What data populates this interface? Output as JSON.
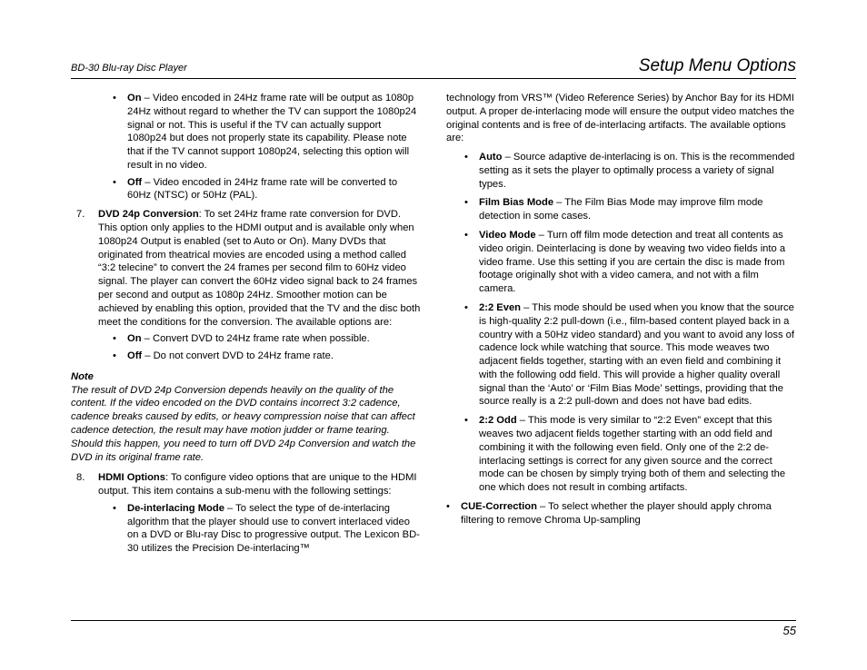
{
  "header": {
    "left": "BD-30 Blu-ray Disc Player",
    "right": "Setup Menu Options"
  },
  "col1": {
    "top_bullets": [
      {
        "label": "On",
        "text": " – Video encoded in 24Hz frame rate will be output as 1080p 24Hz without regard to whether the TV can support the 1080p24 signal or not. This is useful if the TV can actually support 1080p24 but does not properly state its capability. Please note that if the TV cannot support 1080p24, selecting this option will result in no video."
      },
      {
        "label": "Off",
        "text": " – Video encoded in 24Hz frame rate will be converted to 60Hz (NTSC) or 50Hz (PAL)."
      }
    ],
    "item7": {
      "num": "7.",
      "label": "DVD 24p Conversion",
      "text": ": To set 24Hz frame rate conversion for DVD. This option only applies to the HDMI output and is available only when 1080p24 Output is enabled (set to Auto or On). Many DVDs that originated from theatrical movies are encoded using a method called “3:2 telecine” to convert the 24 frames per second film to 60Hz video signal. The player can convert the 60Hz video signal back to 24 frames per second and output as 1080p 24Hz. Smoother motion can be achieved by enabling this option, provided that the TV and the disc both meet the conditions for the conversion. The available options are:",
      "sub": [
        {
          "label": "On",
          "text": " – Convert DVD to 24Hz frame rate when possible."
        },
        {
          "label": "Off",
          "text": " – Do not convert DVD to 24Hz frame rate."
        }
      ]
    },
    "note_head": "Note",
    "note_body": "The result of DVD 24p Conversion depends heavily on the quality of the content. If the video encoded on the DVD contains incorrect 3:2 cadence, cadence breaks caused by edits, or heavy compression noise that can affect cadence detection, the result may have motion judder or frame tearing. Should this happen, you need to turn off DVD 24p Conversion and watch the DVD in its original frame rate.",
    "item8": {
      "num": "8.",
      "label": "HDMI Options",
      "text": ": To configure video options that are unique to the HDMI output. This item contains a sub-menu with the following settings:",
      "sub": [
        {
          "label": "De-interlacing Mode",
          "text": " – To select the type of de-interlacing algorithm that the player should use to convert interlaced video on a DVD or Blu-ray Disc to progressive output. The Lexicon BD-30 utilizes the Precision De-interlacing™"
        }
      ]
    }
  },
  "col2": {
    "lead": "technology from VRS™ (Video Reference Series) by Anchor Bay for its HDMI output. A proper de-interlacing mode will ensure the output video matches the original contents and is free of de-interlacing artifacts. The available options are:",
    "bullets": [
      {
        "label": "Auto",
        "text": " – Source adaptive de-interlacing is on. This is the recommended setting as it sets the player to optimally process a variety of signal types."
      },
      {
        "label": "Film Bias Mode",
        "text": " – The Film Bias Mode may improve film mode detection in some cases."
      },
      {
        "label": "Video Mode",
        "text": " – Turn off film mode detection and treat all contents as video origin. Deinterlacing is done by weaving two video fields into a video frame. Use this setting if you are certain the disc is made from footage originally shot with a video camera, and not with a film camera."
      },
      {
        "label": "2:2 Even",
        "text": " – This mode should be used when you know that the source is high-quality 2:2 pull-down (i.e., film-based content played back in a country with a 50Hz video standard) and you want to avoid any loss of cadence lock while watching that source. This mode weaves two adjacent fields together, starting with an even field and combining it with the following odd field. This will provide a higher quality overall signal than the ‘Auto’ or ‘Film Bias Mode’ settings, providing that the source really is a 2:2 pull-down and does not have bad edits."
      },
      {
        "label": "2:2 Odd",
        "text": " – This mode is very similar to “2:2 Even” except that this weaves two adjacent fields together starting with an odd field and combining it with the following even field. Only one of the 2:2 de-interlacing settings is correct for any given source and the correct mode can be chosen by simply trying both of them and selecting the one which does not result in combing artifacts."
      }
    ],
    "outer": [
      {
        "label": "CUE-Correction",
        "text": " – To select whether the player should apply chroma filtering to remove Chroma Up-sampling"
      }
    ]
  },
  "page_number": "55"
}
